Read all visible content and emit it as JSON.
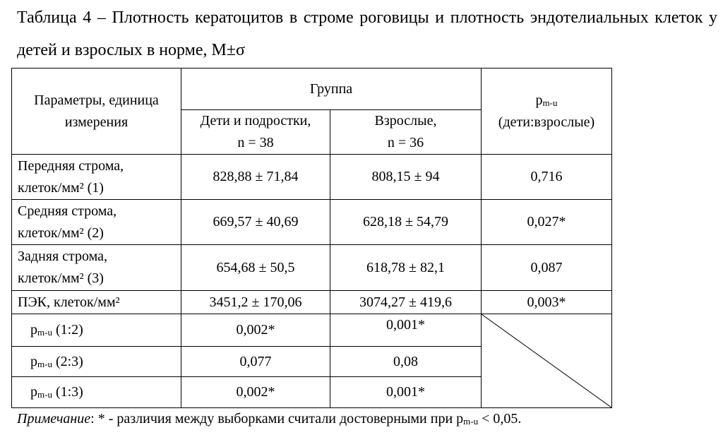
{
  "caption": "Таблица 4 – Плотность кератоцитов в строме роговицы и плотность эндотелиальных клеток у детей и взрослых в норме, M±σ",
  "table": {
    "header": {
      "param": [
        "Параметры, единица",
        "измерения"
      ],
      "group": "Группа",
      "children": [
        "Дети и подростки,",
        "n = 38"
      ],
      "adults": [
        "Взрослые,",
        "n = 36"
      ],
      "p_base": "p",
      "p_sub": "m-u",
      "p_note": "(дети:взрослые)"
    },
    "rows": [
      [
        [
          "Передняя строма,",
          "клеток/мм² (1)"
        ],
        "828,88 ± 71,84",
        "808,15 ± 94",
        "0,716"
      ],
      [
        [
          "Средняя строма,",
          "клеток/мм² (2)"
        ],
        "669,57 ± 40,69",
        "628,18 ± 54,79",
        "0,027*"
      ],
      [
        [
          "Задняя строма,",
          "клеток/мм² (3)"
        ],
        "654,68 ± 50,5",
        "618,78 ± 82,1",
        "0,087"
      ],
      [
        [
          "ПЭК, клеток/мм²"
        ],
        "3451,2 ± 170,06",
        "3074,27 ± 419,6",
        "0,003*"
      ]
    ],
    "comparisons": [
      {
        "p": "p",
        "sub": "m-u",
        "pair": "(1:2)",
        "children": "0,002*",
        "adults": "0,001*"
      },
      {
        "p": "p",
        "sub": "m-u",
        "pair": "(2:3)",
        "children": "0,077",
        "adults": "0,08"
      },
      {
        "p": "p",
        "sub": "m-u",
        "pair": "(1:3)",
        "children": "0,002*",
        "adults": "0,001*"
      }
    ]
  },
  "note": {
    "label": "Примечание",
    "text": ": * - различия между выборками считали достоверными при",
    "p": "p",
    "sub": "m-u",
    "tail": "< 0,05."
  }
}
